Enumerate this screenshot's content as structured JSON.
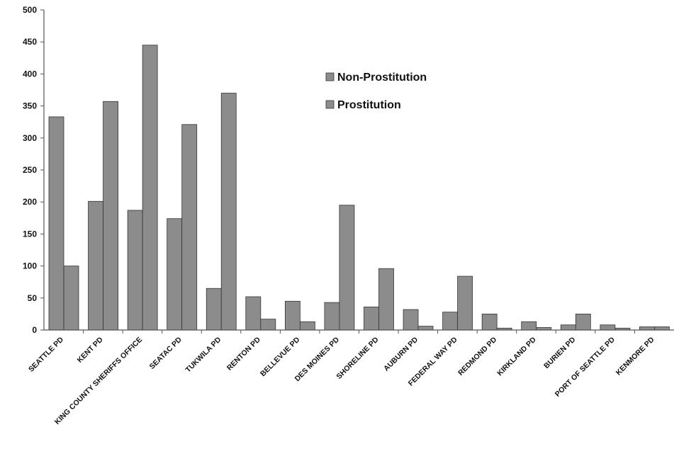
{
  "chart_data": {
    "type": "bar",
    "title": "",
    "xlabel": "",
    "ylabel": "",
    "ylim": [
      0,
      500
    ],
    "yticks": [
      0,
      50,
      100,
      150,
      200,
      250,
      300,
      350,
      400,
      450,
      500
    ],
    "grid": false,
    "legend_position": "top-center",
    "categories": [
      "SEATTLE PD",
      "KENT PD",
      "KING COUNTY SHERIFFS OFFICE",
      "SEATAC PD",
      "TUKWILA PD",
      "RENTON PD",
      "BELLEVUE PD",
      "DES MOINES PD",
      "SHORELINE PD",
      "AUBURN PD",
      "FEDERAL WAY PD",
      "REDMOND PD",
      "KIRKLAND PD",
      "BURIEN PD",
      "PORT OF SEATTLE PD",
      "KENMORE PD"
    ],
    "series": [
      {
        "name": "Non-Prostitution",
        "color": "#8c8c8c",
        "values": [
          333,
          201,
          187,
          174,
          65,
          52,
          45,
          43,
          36,
          32,
          28,
          25,
          13,
          8,
          8,
          5
        ]
      },
      {
        "name": "Prostitution",
        "color": "#8c8c8c",
        "values": [
          100,
          357,
          445,
          321,
          370,
          17,
          13,
          195,
          96,
          6,
          84,
          3,
          4,
          25,
          3,
          5
        ]
      }
    ]
  }
}
